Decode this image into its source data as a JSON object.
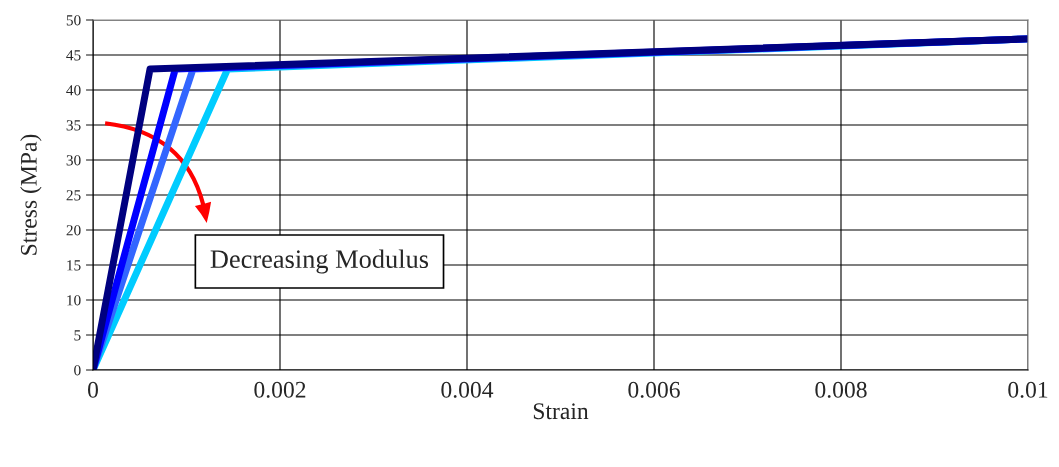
{
  "chart_data": {
    "type": "line",
    "xlabel": "Strain",
    "ylabel": "Stress (MPa)",
    "xlim": [
      0,
      0.01
    ],
    "ylim": [
      0,
      50
    ],
    "xticks": [
      0,
      0.002,
      0.004,
      0.006,
      0.008,
      0.01
    ],
    "yticks": [
      0,
      5,
      10,
      15,
      20,
      25,
      30,
      35,
      40,
      45,
      50
    ],
    "grid": true,
    "marker": "none",
    "line_style": "solid",
    "series": [
      {
        "color": "#00ccff",
        "x": [
          0,
          0.00144,
          0.01
        ],
        "values": [
          0,
          43,
          47.3
        ]
      },
      {
        "color": "#3366ff",
        "x": [
          0,
          0.00107,
          0.01
        ],
        "values": [
          0,
          43,
          47.3
        ]
      },
      {
        "color": "#0000ff",
        "x": [
          0,
          0.00088,
          0.01
        ],
        "values": [
          0,
          43,
          47.3
        ]
      },
      {
        "color": "#000080",
        "x": [
          0,
          0.00061,
          0.01
        ],
        "values": [
          0,
          43,
          47.3
        ]
      }
    ],
    "annotations": [
      "Decreasing Modulus"
    ]
  }
}
